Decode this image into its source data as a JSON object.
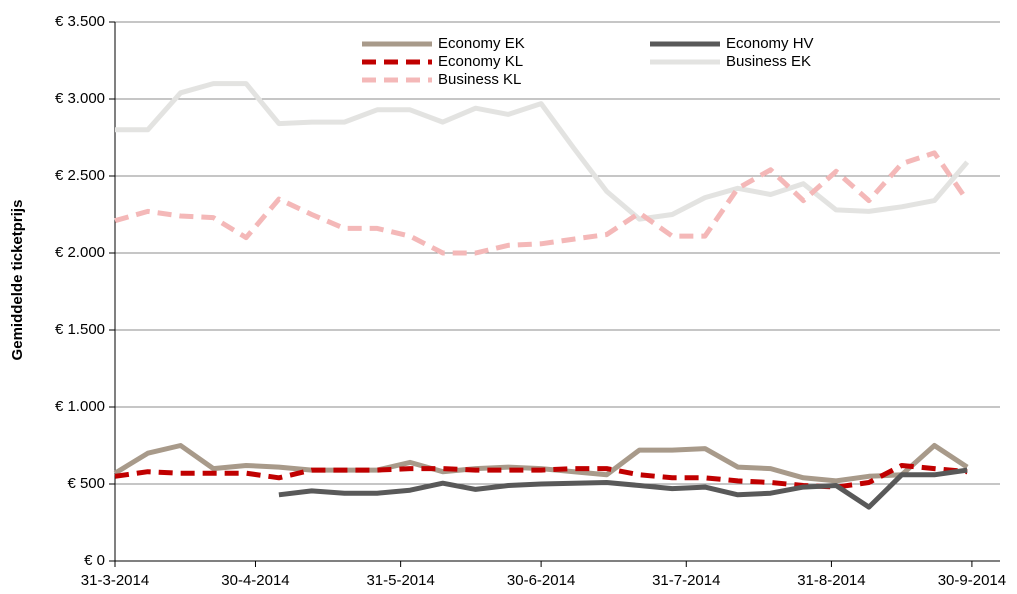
{
  "chart_data": {
    "type": "line",
    "y_label": "Gemiddelde ticketprijs",
    "x": [
      "2014-03-31",
      "2014-04-07",
      "2014-04-14",
      "2014-04-21",
      "2014-04-28",
      "2014-05-05",
      "2014-05-12",
      "2014-05-19",
      "2014-05-26",
      "2014-06-02",
      "2014-06-09",
      "2014-06-16",
      "2014-06-23",
      "2014-06-30",
      "2014-07-07",
      "2014-07-14",
      "2014-07-21",
      "2014-07-28",
      "2014-08-04",
      "2014-08-11",
      "2014-08-18",
      "2014-08-25",
      "2014-09-01",
      "2014-09-08",
      "2014-09-15",
      "2014-09-22",
      "2014-09-29"
    ],
    "xlim": [
      "2014-03-31",
      "2014-10-06"
    ],
    "xticks": [
      {
        "value": "2014-03-31",
        "label": "31-3-2014"
      },
      {
        "value": "2014-04-30",
        "label": "30-4-2014"
      },
      {
        "value": "2014-05-31",
        "label": "31-5-2014"
      },
      {
        "value": "2014-06-30",
        "label": "30-6-2014"
      },
      {
        "value": "2014-07-31",
        "label": "31-7-2014"
      },
      {
        "value": "2014-08-31",
        "label": "31-8-2014"
      },
      {
        "value": "2014-09-30",
        "label": "30-9-2014"
      }
    ],
    "ylim": [
      0,
      3500
    ],
    "yticks": [
      {
        "value": 0,
        "label": "€ 0"
      },
      {
        "value": 500,
        "label": "€ 500"
      },
      {
        "value": 1000,
        "label": "€ 1.000"
      },
      {
        "value": 1500,
        "label": "€ 1.500"
      },
      {
        "value": 2000,
        "label": "€ 2.000"
      },
      {
        "value": 2500,
        "label": "€ 2.500"
      },
      {
        "value": 3000,
        "label": "€ 3.000"
      },
      {
        "value": 3500,
        "label": "€ 3.500"
      }
    ],
    "grid": true,
    "series": [
      {
        "name": "Economy EK",
        "color": "#a89a8a",
        "dashed": false,
        "values": [
          570,
          700,
          750,
          600,
          620,
          610,
          590,
          590,
          590,
          640,
          580,
          600,
          610,
          600,
          580,
          560,
          720,
          720,
          730,
          610,
          600,
          540,
          520,
          550,
          560,
          750,
          610
        ]
      },
      {
        "name": "Economy HV",
        "color": "#595959",
        "dashed": false,
        "values": [
          null,
          null,
          null,
          null,
          null,
          430,
          455,
          440,
          440,
          460,
          505,
          465,
          490,
          500,
          505,
          510,
          490,
          470,
          480,
          430,
          440,
          480,
          490,
          350,
          560,
          560,
          590
        ]
      },
      {
        "name": "Economy KL",
        "color": "#c00000",
        "dashed": true,
        "values": [
          550,
          580,
          570,
          570,
          570,
          540,
          590,
          590,
          590,
          600,
          600,
          590,
          590,
          590,
          600,
          600,
          560,
          540,
          540,
          520,
          510,
          490,
          480,
          510,
          620,
          600,
          580
        ]
      },
      {
        "name": "Business EK",
        "color": "#e3e3e1",
        "dashed": false,
        "values": [
          2800,
          2800,
          3040,
          3100,
          3100,
          2840,
          2850,
          2850,
          2930,
          2930,
          2850,
          2940,
          2900,
          2970,
          2680,
          2400,
          2220,
          2250,
          2360,
          2420,
          2380,
          2450,
          2280,
          2270,
          2300,
          2340,
          2590
        ]
      },
      {
        "name": "Business KL",
        "color": "#f4b8b8",
        "dashed": true,
        "values": [
          2210,
          2270,
          2240,
          2230,
          2100,
          2350,
          2250,
          2160,
          2160,
          2110,
          2000,
          2000,
          2050,
          2060,
          2090,
          2120,
          2260,
          2110,
          2110,
          2420,
          2540,
          2340,
          2530,
          2340,
          2580,
          2650,
          2340
        ]
      }
    ]
  }
}
